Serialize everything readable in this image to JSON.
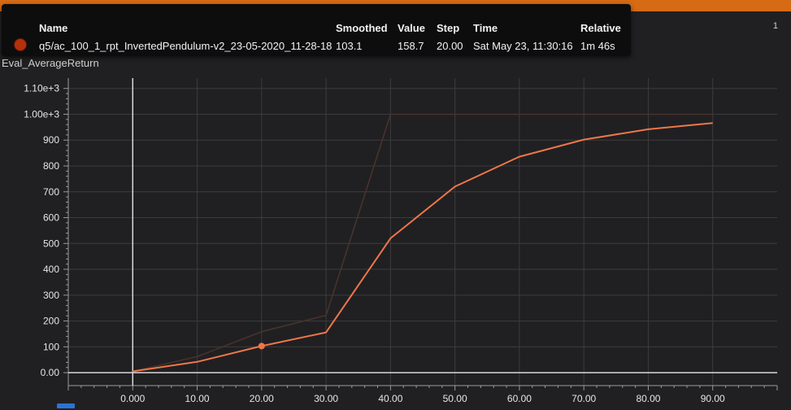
{
  "window": {
    "corner_label": "1"
  },
  "chart_title": "Eval_AverageReturn",
  "tooltip": {
    "headers": {
      "name": "Name",
      "smoothed": "Smoothed",
      "value": "Value",
      "step": "Step",
      "time": "Time",
      "relative": "Relative"
    },
    "row": {
      "name": "q5/ac_100_1_rpt_InvertedPendulum-v2_23-05-2020_11-28-18",
      "smoothed": "103.1",
      "value": "158.7",
      "step": "20.00",
      "time": "Sat May 23, 11:30:16",
      "relative": "1m 46s",
      "color": "#b3300c"
    }
  },
  "chart_data": {
    "type": "line",
    "title": "Eval_AverageReturn",
    "xlabel": "",
    "ylabel": "",
    "xlim": [
      -10,
      100
    ],
    "ylim": [
      -50,
      1140
    ],
    "x_ticks": [
      0,
      10,
      20,
      30,
      40,
      50,
      60,
      70,
      80,
      90
    ],
    "x_tick_labels": [
      "0.000",
      "10.00",
      "20.00",
      "30.00",
      "40.00",
      "50.00",
      "60.00",
      "70.00",
      "80.00",
      "90.00"
    ],
    "y_ticks": [
      0,
      100,
      200,
      300,
      400,
      500,
      600,
      700,
      800,
      900,
      1000,
      1100
    ],
    "y_tick_labels": [
      "0.00",
      "100",
      "200",
      "300",
      "400",
      "500",
      "600",
      "700",
      "800",
      "900",
      "1.00e+3",
      "1.10e+3"
    ],
    "grid": true,
    "series": [
      {
        "role": "raw",
        "color": "#4a322a",
        "x": [
          0,
          10,
          20,
          30,
          40,
          50,
          60,
          70,
          80,
          90
        ],
        "y": [
          5,
          62,
          158.7,
          222,
          1000,
          1000,
          1000,
          1000,
          1000,
          1000
        ]
      },
      {
        "role": "smoothed",
        "color": "#f0764a",
        "x": [
          0,
          10,
          20,
          30,
          40,
          50,
          60,
          70,
          80,
          90
        ],
        "y": [
          5,
          42,
          103.1,
          156,
          520,
          720,
          836,
          902,
          942,
          966
        ]
      }
    ],
    "highlight_point": {
      "x": 20,
      "y": 103.1
    },
    "colors": {
      "cursor_line": "#d8d8d8",
      "grid": "#3c3c3e"
    }
  }
}
